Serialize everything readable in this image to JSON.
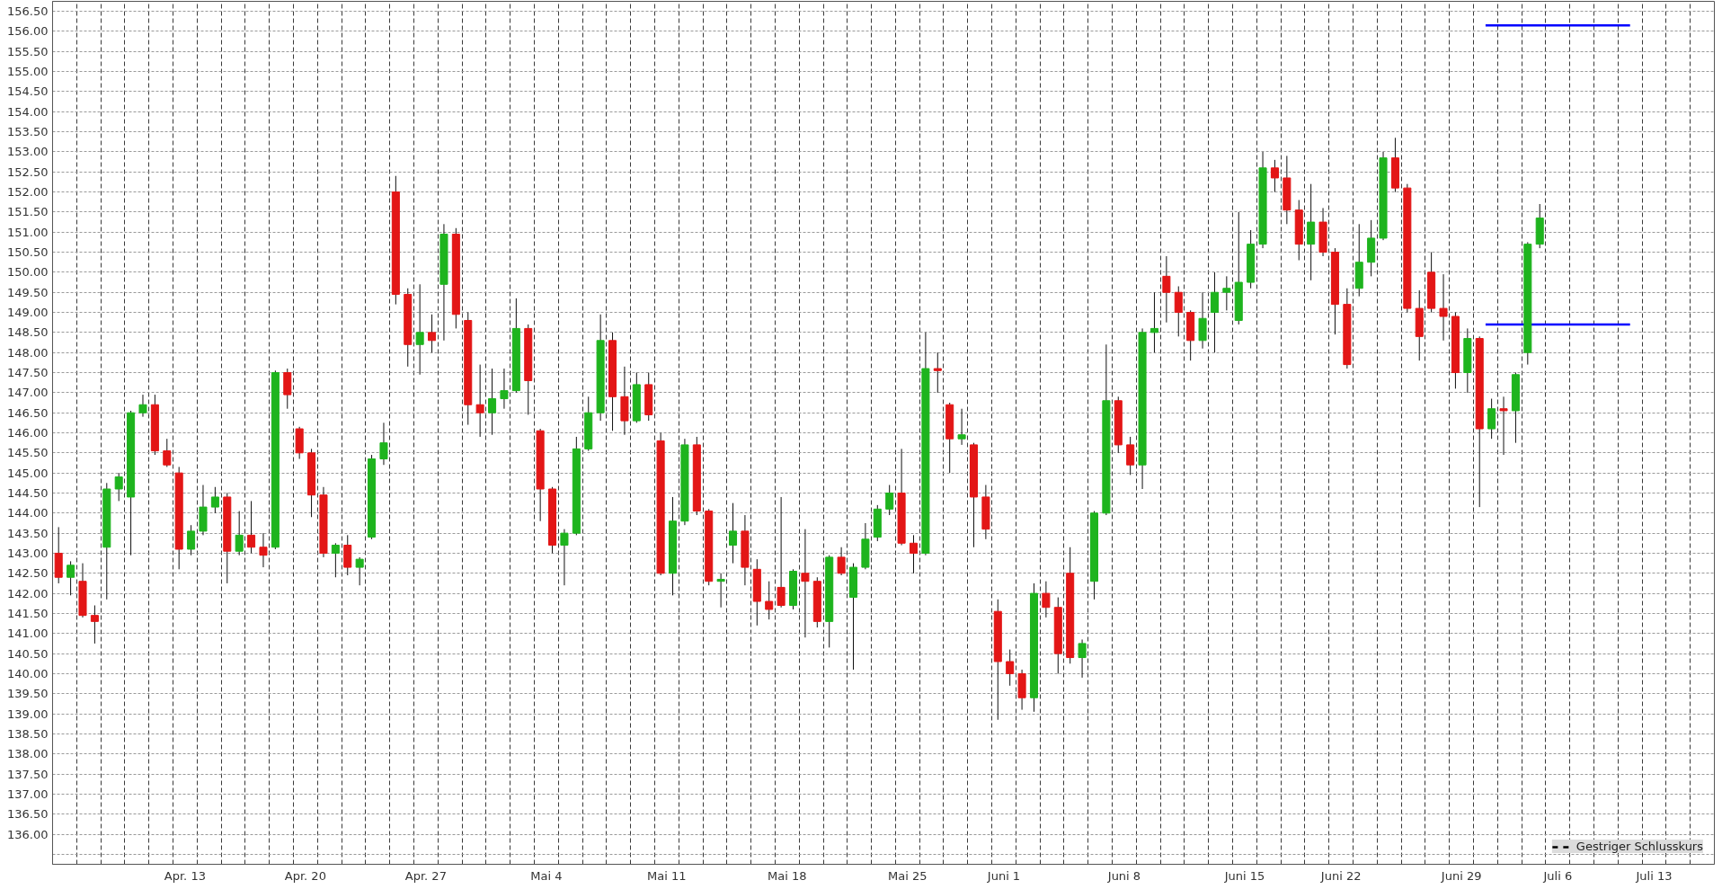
{
  "chart_data": {
    "type": "candlestick",
    "categories": [
      null,
      null,
      null,
      null,
      null,
      "Apr. 13",
      null,
      null,
      null,
      null,
      "Apr. 20",
      null,
      null,
      null,
      null,
      "Apr. 27",
      null,
      null,
      null,
      null,
      "Mai 4",
      null,
      null,
      null,
      null,
      "Mai 11",
      null,
      null,
      null,
      null,
      "Mai 18",
      null,
      null,
      null,
      null,
      "Mai 25",
      null,
      null,
      null,
      "Juni 1",
      null,
      null,
      null,
      null,
      "Juni 8",
      null,
      null,
      null,
      null,
      "Juni 15",
      null,
      null,
      null,
      "Juni 22",
      null,
      null,
      null,
      null,
      "Juni 29",
      null,
      null,
      null,
      "Juli 6",
      null,
      null,
      null,
      "Juli 13",
      null,
      null
    ],
    "series": [
      {
        "ohlc": [
          [
            143.0,
            143.65,
            142.25,
            142.4
          ],
          [
            142.3,
            142.75,
            141.4,
            141.45
          ],
          [
            143.15,
            144.75,
            141.85,
            144.6
          ],
          [
            144.4,
            146.55,
            142.95,
            146.5
          ],
          [
            146.7,
            146.95,
            145.45,
            145.55
          ],
          [
            145.0,
            145.15,
            142.6,
            143.1
          ],
          [
            143.55,
            144.7,
            143.45,
            144.15
          ],
          [
            144.4,
            144.5,
            142.25,
            143.05
          ],
          [
            143.45,
            144.3,
            143.0,
            143.15
          ],
          [
            143.15,
            147.55,
            143.1,
            147.5
          ],
          [
            146.1,
            146.15,
            145.35,
            145.5
          ],
          [
            144.45,
            144.65,
            142.9,
            143.0
          ],
          [
            143.2,
            143.45,
            142.45,
            142.65
          ],
          [
            143.4,
            145.45,
            143.35,
            145.35
          ],
          [
            152.0,
            152.4,
            149.2,
            149.45
          ],
          [
            148.2,
            149.7,
            147.45,
            148.5
          ],
          [
            149.7,
            151.2,
            148.3,
            150.95
          ],
          [
            148.8,
            149.0,
            146.2,
            146.7
          ],
          [
            146.5,
            147.6,
            145.95,
            146.85
          ],
          [
            147.05,
            149.35,
            147.0,
            148.6
          ],
          [
            146.05,
            146.1,
            143.8,
            144.6
          ],
          [
            143.2,
            143.6,
            142.2,
            143.5
          ],
          [
            145.6,
            146.9,
            145.55,
            146.5
          ],
          [
            148.3,
            148.5,
            146.05,
            146.9
          ],
          [
            146.3,
            147.5,
            146.25,
            147.2
          ],
          [
            145.8,
            146.0,
            142.45,
            142.5
          ],
          [
            143.8,
            145.85,
            143.7,
            145.7
          ],
          [
            144.05,
            144.1,
            142.2,
            142.3
          ],
          [
            143.2,
            144.25,
            142.75,
            143.55
          ],
          [
            142.6,
            142.85,
            141.2,
            141.8
          ],
          [
            142.15,
            144.4,
            141.65,
            141.7
          ],
          [
            142.5,
            143.6,
            140.9,
            142.3
          ],
          [
            141.3,
            142.95,
            140.65,
            142.9
          ],
          [
            141.9,
            142.75,
            140.1,
            142.65
          ],
          [
            143.4,
            144.2,
            143.3,
            144.1
          ],
          [
            144.5,
            145.6,
            143.2,
            143.25
          ],
          [
            143.0,
            148.5,
            142.95,
            147.6
          ],
          [
            146.7,
            146.75,
            145.0,
            145.85
          ],
          [
            145.7,
            145.75,
            143.15,
            144.4
          ],
          [
            141.55,
            141.85,
            138.85,
            140.3
          ],
          [
            140.0,
            140.1,
            139.1,
            139.4
          ],
          [
            142.0,
            142.3,
            141.4,
            141.65
          ],
          [
            142.5,
            143.15,
            140.25,
            140.4
          ],
          [
            142.3,
            144.05,
            141.85,
            144.0
          ],
          [
            146.8,
            146.9,
            145.5,
            145.7
          ],
          [
            145.2,
            148.6,
            144.6,
            148.5
          ],
          [
            149.9,
            150.4,
            148.75,
            149.5
          ],
          [
            149.0,
            149.05,
            147.8,
            148.3
          ],
          [
            149.0,
            150.0,
            148.0,
            149.5
          ],
          [
            148.8,
            151.5,
            148.7,
            149.75
          ],
          [
            150.7,
            153.0,
            150.6,
            152.6
          ],
          [
            152.35,
            152.9,
            151.2,
            151.55
          ],
          [
            150.7,
            152.2,
            149.8,
            151.25
          ],
          [
            150.5,
            150.6,
            148.45,
            149.2
          ],
          [
            149.6,
            151.2,
            149.4,
            150.25
          ],
          [
            150.85,
            153.0,
            150.8,
            152.85
          ],
          [
            152.1,
            152.2,
            149.0,
            149.1
          ],
          [
            150.0,
            150.5,
            149.0,
            149.1
          ],
          [
            148.9,
            149.0,
            147.1,
            147.5
          ],
          [
            148.35,
            148.4,
            144.15,
            146.1
          ],
          [
            146.6,
            146.9,
            145.45,
            146.55
          ],
          [
            148.0,
            150.75,
            147.7,
            150.7
          ],
          null,
          null,
          null,
          null,
          null,
          null,
          null
        ],
        "colors": [
          "#e31616",
          "#e31616",
          "#1eb41e",
          "#1eb41e",
          "#e31616",
          "#e31616",
          "#1eb41e",
          "#e31616",
          "#e31616",
          "#1eb41e",
          "#e31616",
          "#e31616",
          "#e31616",
          "#1eb41e",
          "#e31616",
          "#1eb41e",
          "#1eb41e",
          "#e31616",
          "#1eb41e",
          "#1eb41e",
          "#e31616",
          "#1eb41e",
          "#1eb41e",
          "#e31616",
          "#1eb41e",
          "#e31616",
          "#1eb41e",
          "#e31616",
          "#1eb41e",
          "#e31616",
          "#e31616",
          "#e31616",
          "#1eb41e",
          "#1eb41e",
          "#1eb41e",
          "#e31616",
          "#1eb41e",
          "#e31616",
          "#e31616",
          "#e31616",
          "#e31616",
          "#e31616",
          "#e31616",
          "#1eb41e",
          "#e31616",
          "#1eb41e",
          "#e31616",
          "#e31616",
          "#1eb41e",
          "#1eb41e",
          "#1eb41e",
          "#e31616",
          "#1eb41e",
          "#e31616",
          "#1eb41e",
          "#1eb41e",
          "#e31616",
          "#e31616",
          "#e31616",
          "#e31616",
          "#e31616",
          "#1eb41e",
          null,
          null,
          null,
          null,
          null,
          null,
          null
        ]
      },
      {
        "ohlc": [
          [
            142.4,
            142.8,
            141.95,
            142.7
          ],
          [
            141.45,
            141.7,
            140.75,
            141.3
          ],
          [
            144.6,
            145.0,
            144.3,
            144.9
          ],
          [
            146.5,
            146.95,
            146.4,
            146.7
          ],
          [
            145.55,
            145.85,
            145.15,
            145.2
          ],
          [
            143.1,
            143.7,
            142.95,
            143.55
          ],
          [
            144.15,
            144.65,
            144.0,
            144.4
          ],
          [
            143.05,
            144.05,
            142.95,
            143.45
          ],
          [
            143.15,
            143.5,
            142.65,
            142.95
          ],
          [
            147.5,
            147.6,
            146.6,
            146.95
          ],
          [
            145.5,
            145.6,
            143.9,
            144.45
          ],
          [
            143.0,
            143.25,
            142.4,
            143.2
          ],
          [
            142.65,
            142.9,
            142.2,
            142.85
          ],
          [
            145.35,
            146.25,
            145.2,
            145.75
          ],
          [
            149.45,
            149.6,
            147.65,
            148.2
          ],
          [
            148.5,
            148.95,
            148.0,
            148.3
          ],
          [
            150.95,
            151.1,
            148.6,
            148.95
          ],
          [
            146.7,
            147.7,
            145.9,
            146.5
          ],
          [
            146.85,
            147.6,
            146.6,
            147.05
          ],
          [
            148.6,
            148.7,
            146.45,
            147.3
          ],
          [
            144.6,
            144.65,
            143.0,
            143.2
          ],
          [
            143.5,
            145.9,
            143.45,
            145.6
          ],
          [
            146.5,
            148.95,
            146.3,
            148.3
          ],
          [
            146.9,
            147.65,
            145.95,
            146.3
          ],
          [
            147.2,
            147.5,
            146.3,
            146.45
          ],
          [
            142.5,
            144.4,
            141.95,
            143.8
          ],
          [
            145.7,
            145.9,
            143.95,
            144.05
          ],
          [
            142.3,
            142.5,
            141.65,
            142.35
          ],
          [
            143.55,
            143.95,
            142.2,
            142.65
          ],
          [
            141.8,
            142.3,
            141.35,
            141.6
          ],
          [
            141.7,
            142.6,
            141.6,
            142.55
          ],
          [
            142.3,
            142.4,
            141.15,
            141.3
          ],
          [
            142.9,
            143.15,
            142.45,
            142.5
          ],
          [
            142.65,
            143.75,
            142.6,
            143.35
          ],
          [
            144.1,
            144.7,
            143.95,
            144.5
          ],
          [
            143.25,
            143.45,
            142.5,
            143.0
          ],
          [
            147.6,
            148.0,
            147.0,
            147.55
          ],
          [
            145.85,
            146.6,
            145.7,
            145.95
          ],
          [
            144.4,
            144.7,
            143.35,
            143.6
          ],
          [
            140.3,
            140.6,
            139.7,
            140.0
          ],
          [
            139.4,
            142.25,
            139.05,
            142.0
          ],
          [
            141.65,
            141.9,
            140.0,
            140.5
          ],
          [
            140.4,
            140.85,
            139.9,
            140.75
          ],
          [
            144.0,
            148.2,
            143.95,
            146.8
          ],
          [
            145.7,
            145.9,
            144.95,
            145.2
          ],
          [
            148.5,
            149.5,
            148.0,
            148.6
          ],
          [
            149.5,
            149.65,
            148.4,
            149.0
          ],
          [
            148.3,
            149.5,
            148.1,
            148.85
          ],
          [
            149.5,
            149.9,
            149.05,
            149.6
          ],
          [
            149.75,
            151.05,
            149.6,
            150.7
          ],
          [
            152.6,
            152.8,
            152.0,
            152.35
          ],
          [
            151.55,
            151.8,
            150.3,
            150.7
          ],
          [
            151.25,
            151.6,
            150.4,
            150.5
          ],
          [
            149.2,
            149.6,
            147.6,
            147.7
          ],
          [
            150.25,
            151.3,
            149.9,
            150.85
          ],
          [
            152.85,
            153.35,
            152.0,
            152.1
          ],
          [
            149.1,
            149.55,
            147.8,
            148.4
          ],
          [
            149.1,
            149.95,
            148.3,
            148.9
          ],
          [
            147.5,
            148.6,
            147.0,
            148.35
          ],
          [
            146.1,
            146.85,
            145.85,
            146.6
          ],
          [
            146.55,
            147.5,
            145.75,
            147.45
          ],
          [
            150.7,
            151.7,
            150.6,
            151.35
          ],
          null,
          null,
          null,
          null,
          null,
          null,
          null
        ],
        "colors": [
          "#1eb41e",
          "#e31616",
          "#1eb41e",
          "#1eb41e",
          "#e31616",
          "#1eb41e",
          "#1eb41e",
          "#1eb41e",
          "#e31616",
          "#e31616",
          "#e31616",
          "#1eb41e",
          "#1eb41e",
          "#1eb41e",
          "#e31616",
          "#e31616",
          "#e31616",
          "#e31616",
          "#1eb41e",
          "#e31616",
          "#e31616",
          "#1eb41e",
          "#1eb41e",
          "#e31616",
          "#e31616",
          "#1eb41e",
          "#e31616",
          "#1eb41e",
          "#e31616",
          "#e31616",
          "#1eb41e",
          "#e31616",
          "#e31616",
          "#1eb41e",
          "#1eb41e",
          "#e31616",
          "#e31616",
          "#1eb41e",
          "#e31616",
          "#e31616",
          "#1eb41e",
          "#e31616",
          "#1eb41e",
          "#1eb41e",
          "#e31616",
          "#1eb41e",
          "#e31616",
          "#1eb41e",
          "#1eb41e",
          "#1eb41e",
          "#e31616",
          "#e31616",
          "#e31616",
          "#e31616",
          "#1eb41e",
          "#e31616",
          "#e31616",
          "#e31616",
          "#1eb41e",
          "#1eb41e",
          "#1eb41e",
          "#1eb41e",
          null,
          null,
          null,
          null,
          null,
          null,
          null
        ]
      },
      {
        "type": "line",
        "color": "#0000ff",
        "values": [
          null,
          null,
          null,
          null,
          null,
          null,
          null,
          null,
          null,
          null,
          null,
          null,
          null,
          null,
          null,
          null,
          null,
          null,
          null,
          null,
          null,
          null,
          null,
          null,
          null,
          null,
          null,
          null,
          null,
          null,
          null,
          null,
          null,
          null,
          null,
          null,
          null,
          null,
          null,
          null,
          null,
          null,
          null,
          null,
          null,
          null,
          null,
          null,
          null,
          null,
          null,
          null,
          null,
          null,
          null,
          null,
          null,
          null,
          null,
          156.15,
          156.15,
          156.15,
          156.15,
          156.15,
          156.15,
          156.15,
          null,
          null,
          null
        ]
      },
      {
        "type": "line",
        "color": "#0000ff",
        "values": [
          null,
          null,
          null,
          null,
          null,
          null,
          null,
          null,
          null,
          null,
          null,
          null,
          null,
          null,
          null,
          null,
          null,
          null,
          null,
          null,
          null,
          null,
          null,
          null,
          null,
          null,
          null,
          null,
          null,
          null,
          null,
          null,
          null,
          null,
          null,
          null,
          null,
          null,
          null,
          null,
          null,
          null,
          null,
          null,
          null,
          null,
          null,
          null,
          null,
          null,
          null,
          null,
          null,
          null,
          null,
          null,
          null,
          null,
          null,
          148.7,
          148.7,
          148.7,
          148.7,
          148.7,
          148.7,
          148.7,
          null,
          null,
          null
        ]
      },
      {
        "type": "line",
        "name": "Gestriger Schlusskurs",
        "color": "#000000",
        "line_style": "dashed",
        "values": [
          null,
          null,
          null,
          null,
          null,
          null,
          null,
          null,
          null,
          null,
          null,
          null,
          null,
          null,
          null,
          null,
          null,
          null,
          null,
          null,
          null,
          null,
          null,
          null,
          null,
          null,
          null,
          null,
          null,
          null,
          null,
          null,
          null,
          null,
          null,
          null,
          null,
          null,
          null,
          null,
          null,
          null,
          null,
          null,
          null,
          null,
          null,
          null,
          null,
          null,
          null,
          null,
          null,
          null,
          null,
          null,
          null,
          null,
          null,
          null,
          null,
          null,
          null,
          null,
          null,
          null,
          null,
          null,
          null
        ]
      }
    ],
    "ylim": [
      135.25,
      156.75
    ],
    "yticks": [
      {
        "value": 135.5,
        "label": null
      },
      {
        "value": 136.0,
        "label": "136.00"
      },
      {
        "value": 136.5,
        "label": "136.50"
      },
      {
        "value": 137.0,
        "label": "137.00"
      },
      {
        "value": 137.5,
        "label": "137.50"
      },
      {
        "value": 138.0,
        "label": "138.00"
      },
      {
        "value": 138.5,
        "label": "138.50"
      },
      {
        "value": 139.0,
        "label": "139.00"
      },
      {
        "value": 139.5,
        "label": "139.50"
      },
      {
        "value": 140.0,
        "label": "140.00"
      },
      {
        "value": 140.5,
        "label": "140.50"
      },
      {
        "value": 141.0,
        "label": "141.00"
      },
      {
        "value": 141.5,
        "label": "141.50"
      },
      {
        "value": 142.0,
        "label": "142.00"
      },
      {
        "value": 142.5,
        "label": "142.50"
      },
      {
        "value": 143.0,
        "label": "143.00"
      },
      {
        "value": 143.5,
        "label": "143.50"
      },
      {
        "value": 144.0,
        "label": "144.00"
      },
      {
        "value": 144.5,
        "label": "144.50"
      },
      {
        "value": 145.0,
        "label": "145.00"
      },
      {
        "value": 145.5,
        "label": "145.50"
      },
      {
        "value": 146.0,
        "label": "146.00"
      },
      {
        "value": 146.5,
        "label": "146.50"
      },
      {
        "value": 147.0,
        "label": "147.00"
      },
      {
        "value": 147.5,
        "label": "147.50"
      },
      {
        "value": 148.0,
        "label": "148.00"
      },
      {
        "value": 148.5,
        "label": "148.50"
      },
      {
        "value": 149.0,
        "label": "149.00"
      },
      {
        "value": 149.5,
        "label": "149.50"
      },
      {
        "value": 150.0,
        "label": "150.00"
      },
      {
        "value": 150.5,
        "label": "150.50"
      },
      {
        "value": 151.0,
        "label": "151.00"
      },
      {
        "value": 151.5,
        "label": "151.50"
      },
      {
        "value": 152.0,
        "label": "152.00"
      },
      {
        "value": 152.5,
        "label": "152.50"
      },
      {
        "value": 153.0,
        "label": "153.00"
      },
      {
        "value": 153.5,
        "label": "153.50"
      },
      {
        "value": 154.0,
        "label": "154.00"
      },
      {
        "value": 154.5,
        "label": "154.50"
      },
      {
        "value": 155.0,
        "label": "155.00"
      },
      {
        "value": 155.5,
        "label": "155.50"
      },
      {
        "value": 156.0,
        "label": "156.00"
      },
      {
        "value": 156.5,
        "label": "156.50"
      }
    ],
    "grid": true,
    "legend": "bottom right"
  }
}
